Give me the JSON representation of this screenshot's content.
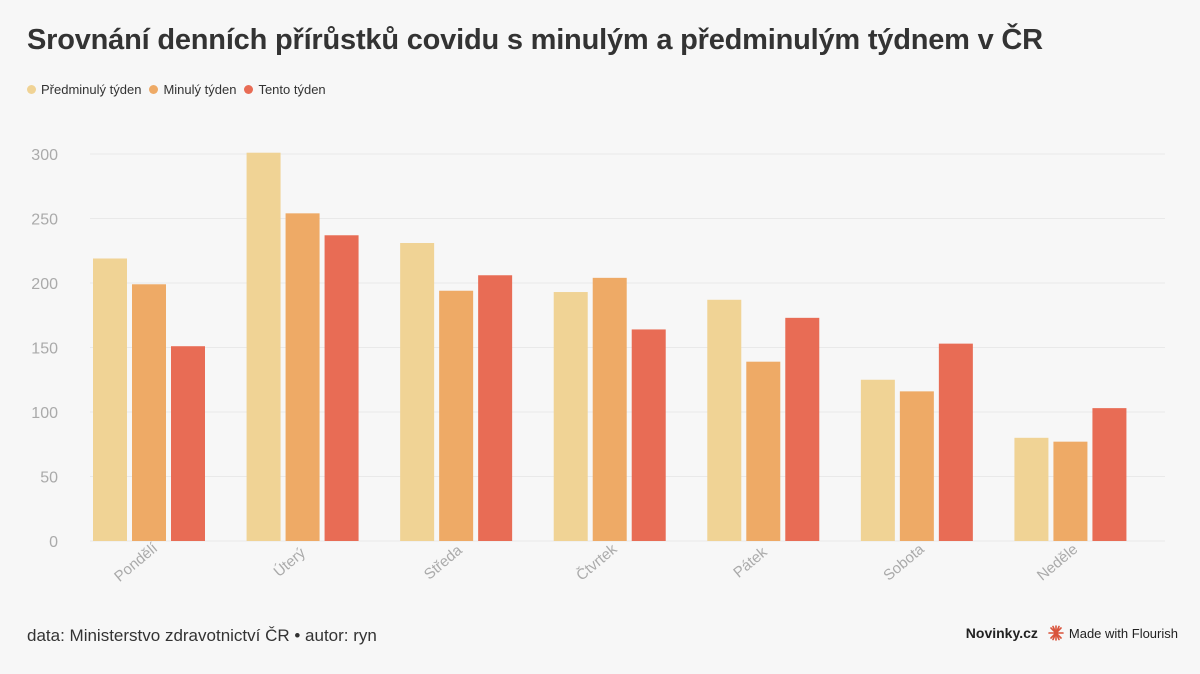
{
  "title": "Srovnání denních přírůstků covidu s minulým a předminulým týdnem v ČR",
  "colors": {
    "background": "#f7f7f7",
    "grid": "#e9e9e9",
    "axis_text": "#aaaaaa"
  },
  "chart_data": {
    "type": "bar",
    "title": "Srovnání denních přírůstků covidu s minulým a předminulým týdnem v ČR",
    "categories": [
      "Pondělí",
      "Úterý",
      "Středa",
      "Čtvrtek",
      "Pátek",
      "Sobota",
      "Neděle"
    ],
    "series": [
      {
        "name": "Předminulý týden",
        "color": "#f0d395",
        "values": [
          219,
          301,
          231,
          193,
          187,
          125,
          80
        ]
      },
      {
        "name": "Minulý týden",
        "color": "#eeaa66",
        "values": [
          199,
          254,
          194,
          204,
          139,
          116,
          77
        ]
      },
      {
        "name": "Tento týden",
        "color": "#e86c55",
        "values": [
          151,
          237,
          206,
          164,
          173,
          153,
          103
        ]
      }
    ],
    "yticks": [
      0,
      50,
      100,
      150,
      200,
      250,
      300
    ],
    "ylim": [
      0,
      320
    ],
    "grid": true,
    "legend_position": "top-left"
  },
  "footer": {
    "source": "data: Ministerstvo zdravotnictví ČR • autor: ryn",
    "brand": "Novinky.cz",
    "made_with": "Made with Flourish"
  }
}
